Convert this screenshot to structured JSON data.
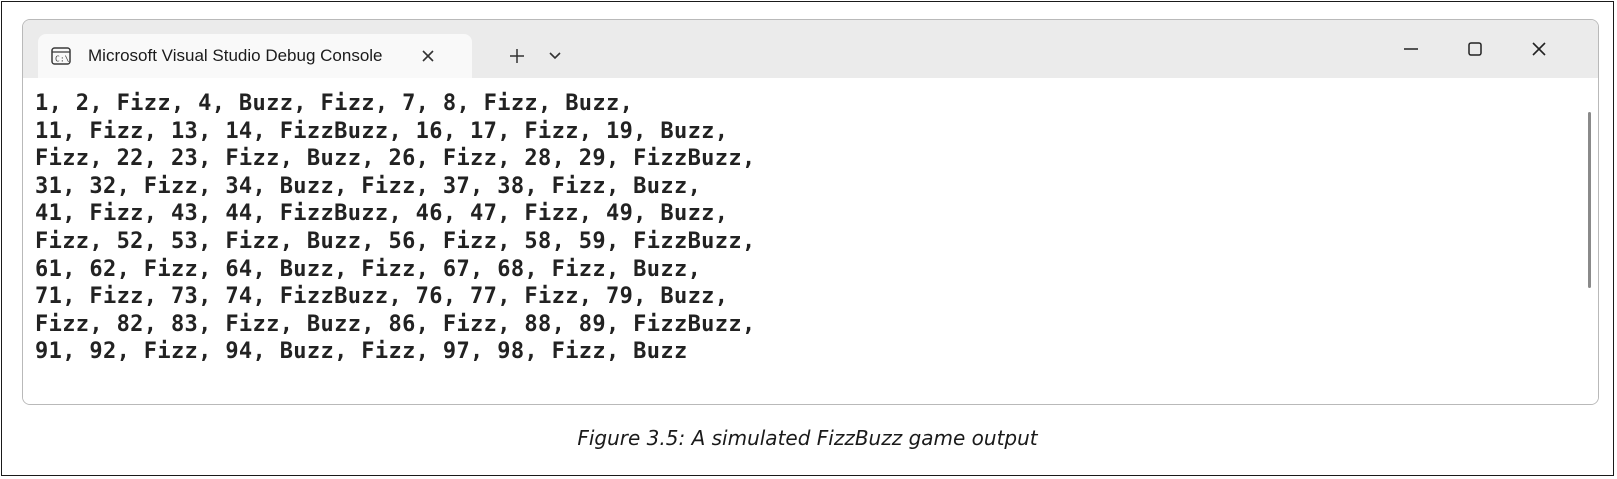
{
  "window": {
    "tab_title": "Microsoft Visual Studio Debug Console",
    "tab_icon": "console-app-icon",
    "tab_close_icon": "close-icon",
    "new_tab_icon": "plus-icon",
    "tab_dropdown_icon": "chevron-down-icon",
    "controls": {
      "minimize_icon": "minimize-icon",
      "maximize_icon": "maximize-icon",
      "close_icon": "close-icon"
    }
  },
  "console": {
    "lines": [
      "1, 2, Fizz, 4, Buzz, Fizz, 7, 8, Fizz, Buzz,",
      "11, Fizz, 13, 14, FizzBuzz, 16, 17, Fizz, 19, Buzz,",
      "Fizz, 22, 23, Fizz, Buzz, 26, Fizz, 28, 29, FizzBuzz,",
      "31, 32, Fizz, 34, Buzz, Fizz, 37, 38, Fizz, Buzz,",
      "41, Fizz, 43, 44, FizzBuzz, 46, 47, Fizz, 49, Buzz,",
      "Fizz, 52, 53, Fizz, Buzz, 56, Fizz, 58, 59, FizzBuzz,",
      "61, 62, Fizz, 64, Buzz, Fizz, 67, 68, Fizz, Buzz,",
      "71, Fizz, 73, 74, FizzBuzz, 76, 77, Fizz, 79, Buzz,",
      "Fizz, 82, 83, Fizz, Buzz, 86, Fizz, 88, 89, FizzBuzz,",
      "91, 92, Fizz, 94, Buzz, Fizz, 97, 98, Fizz, Buzz"
    ]
  },
  "caption": "Figure 3.5: A simulated FizzBuzz game output",
  "colors": {
    "titlebar": "#ebebeb",
    "active_tab": "#f9f9f9",
    "console_bg": "#ffffff",
    "console_text": "#222222"
  }
}
